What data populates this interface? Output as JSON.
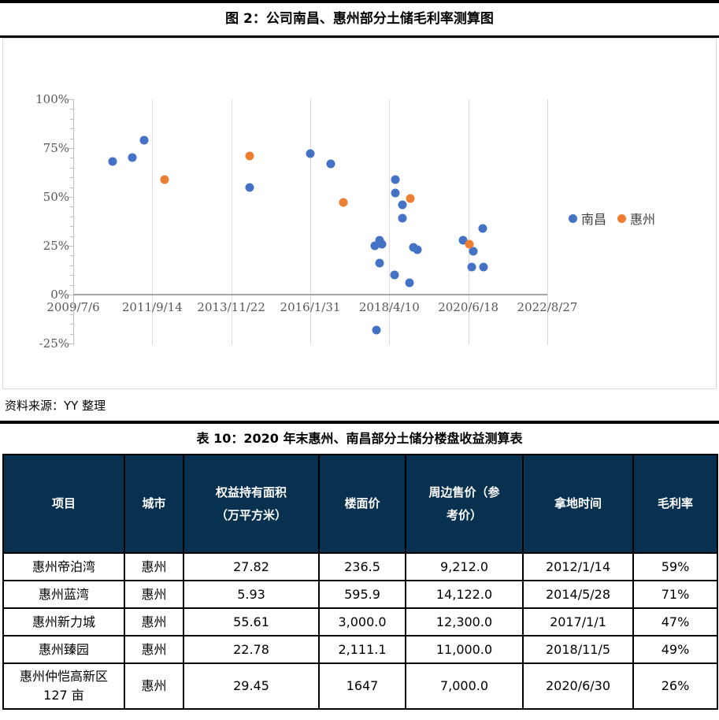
{
  "figure": {
    "title": "图 2：公司南昌、惠州部分土储毛利率测算图",
    "source": "资料来源：YY 整理"
  },
  "chart_data": {
    "type": "scatter",
    "title": "图 2：公司南昌、惠州部分土储毛利率测算图",
    "xlabel": "",
    "ylabel": "",
    "x_ticks": [
      "2009/7/6",
      "2011/9/14",
      "2013/11/22",
      "2016/1/31",
      "2018/4/10",
      "2020/6/18",
      "2022/8/27"
    ],
    "x_range_years": [
      2009.51,
      2022.65
    ],
    "y_tick_values": [
      100,
      75,
      50,
      25,
      0,
      -25
    ],
    "y_tick_labels": [
      "100%",
      "75%",
      "50%",
      "25%",
      "0%",
      "-25%"
    ],
    "ylim": [
      -25,
      100
    ],
    "y_minor_tick_step_pct": 5,
    "grid": "vertical-only",
    "legend_position": "right",
    "series": [
      {
        "name": "南昌",
        "color": "#4472C4",
        "points_year_pct": [
          [
            2010.6,
            68
          ],
          [
            2011.15,
            70
          ],
          [
            2011.48,
            79
          ],
          [
            2014.4,
            55
          ],
          [
            2016.07,
            72
          ],
          [
            2016.64,
            67
          ],
          [
            2018.44,
            59
          ],
          [
            2018.44,
            52
          ],
          [
            2018.64,
            46
          ],
          [
            2018.64,
            39
          ],
          [
            2017.88,
            25
          ],
          [
            2017.99,
            28
          ],
          [
            2018.07,
            26
          ],
          [
            2017.99,
            16
          ],
          [
            2018.42,
            10
          ],
          [
            2018.84,
            6
          ],
          [
            2018.95,
            24
          ],
          [
            2019.05,
            23
          ],
          [
            2017.92,
            -18
          ],
          [
            2020.32,
            28
          ],
          [
            2020.6,
            22
          ],
          [
            2020.56,
            14
          ],
          [
            2020.89,
            14
          ],
          [
            2020.87,
            34
          ]
        ]
      },
      {
        "name": "惠州",
        "color": "#ED7D31",
        "points_year_pct": [
          [
            2012.04,
            59
          ],
          [
            2014.41,
            71
          ],
          [
            2017.0,
            47
          ],
          [
            2018.85,
            49
          ],
          [
            2020.49,
            26
          ]
        ]
      }
    ]
  },
  "table": {
    "title": "表 10：2020 年末惠州、南昌部分土储分楼盘收益测算表",
    "headers": [
      "项目",
      "城市",
      "权益持有面积\n（万平方米）",
      "楼面价",
      "周边售价（参\n考价）",
      "拿地时间",
      "毛利率"
    ],
    "rows": [
      [
        "惠州帝泊湾",
        "惠州",
        "27.82",
        "236.5",
        "9,212.0",
        "2012/1/14",
        "59%"
      ],
      [
        "惠州蓝湾",
        "惠州",
        "5.93",
        "595.9",
        "14,122.0",
        "2014/5/28",
        "71%"
      ],
      [
        "惠州新力城",
        "惠州",
        "55.61",
        "3,000.0",
        "12,300.0",
        "2017/1/1",
        "47%"
      ],
      [
        "惠州臻园",
        "惠州",
        "22.78",
        "2,111.1",
        "11,000.0",
        "2018/11/5",
        "49%"
      ],
      [
        "惠州仲恺高新区 127 亩",
        "惠州",
        "29.45",
        "1647",
        "7,000.0",
        "2020/6/30",
        "26%"
      ]
    ]
  },
  "colors": {
    "nanchang_series": "#4472C4",
    "huizhou_series": "#ED7D31",
    "table_header_bg": "#08304F",
    "gridline": "#D9D9D9",
    "axis": "#BFBFBF",
    "axis_label": "#595959"
  }
}
